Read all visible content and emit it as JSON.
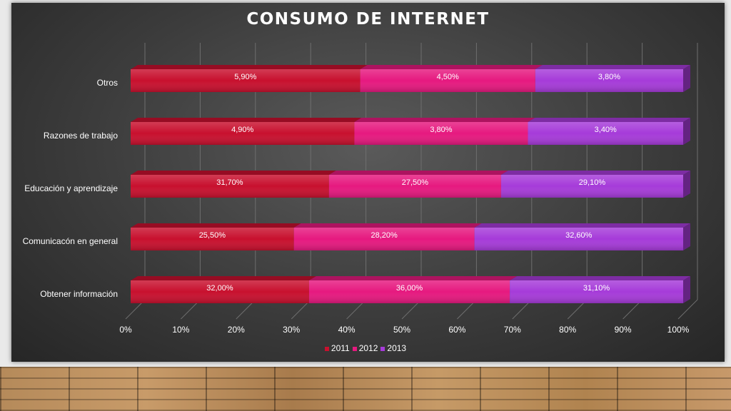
{
  "chart_data": {
    "type": "bar",
    "orientation": "horizontal",
    "stacked": "percent",
    "title": "CONSUMO DE INTERNET",
    "categories": [
      "Otros",
      "Razones de trabajo",
      "Educación y aprendizaje",
      "Comunicacón en general",
      "Obtener información"
    ],
    "series": [
      {
        "name": "2011",
        "color": "#c8102e",
        "values": [
          5.9,
          4.9,
          31.7,
          25.5,
          32.0
        ],
        "labels": [
          "5,90%",
          "4,90%",
          "31,70%",
          "25,50%",
          "32,00%"
        ]
      },
      {
        "name": "2012",
        "color": "#e6197f",
        "values": [
          4.5,
          3.8,
          27.5,
          28.2,
          36.0
        ],
        "labels": [
          "4,50%",
          "3,80%",
          "27,50%",
          "28,20%",
          "36,00%"
        ]
      },
      {
        "name": "2013",
        "color": "#a63bd9",
        "values": [
          3.8,
          3.4,
          29.1,
          32.6,
          31.1
        ],
        "labels": [
          "3,80%",
          "3,40%",
          "29,10%",
          "32,60%",
          "31,10%"
        ]
      }
    ],
    "x_ticks": [
      "0%",
      "10%",
      "20%",
      "30%",
      "40%",
      "50%",
      "60%",
      "70%",
      "80%",
      "90%",
      "100%"
    ],
    "xlim": [
      0,
      100
    ],
    "grid": true,
    "legend_position": "bottom"
  }
}
